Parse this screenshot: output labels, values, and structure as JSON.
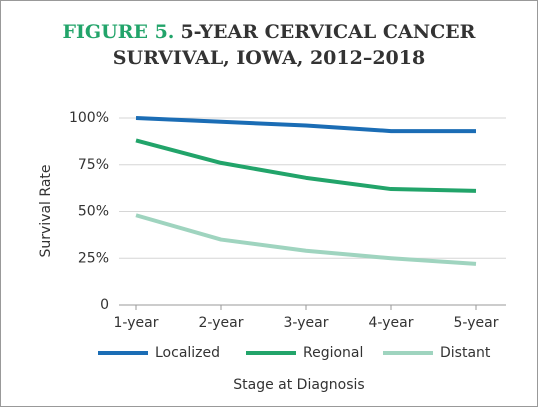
{
  "chart_data": {
    "type": "line",
    "title_label": "FIGURE 5.",
    "title": "5-YEAR CERVICAL CANCER SURVIVAL, IOWA, 2012–2018",
    "x_label": "Stage at Diagnosis",
    "y_label": "Survival Rate",
    "categories": [
      "1-year",
      "2-year",
      "3-year",
      "4-year",
      "5-year"
    ],
    "series": [
      {
        "name": "Localized",
        "color": "#1b6db5",
        "values": [
          100,
          98,
          96,
          93,
          93
        ]
      },
      {
        "name": "Regional",
        "color": "#22a46a",
        "values": [
          88,
          76,
          68,
          62,
          61
        ]
      },
      {
        "name": "Distant",
        "color": "#9fd4bf",
        "values": [
          48,
          35,
          29,
          25,
          22
        ]
      }
    ],
    "ylim": [
      0,
      100
    ],
    "yticks": [
      0,
      {
        "value": 25,
        "label": "25%"
      },
      {
        "value": 50,
        "label": "50%"
      },
      {
        "value": 75,
        "label": "75%"
      },
      {
        "value": 100,
        "label": "100%"
      }
    ],
    "grid": true,
    "legend": "bottom"
  }
}
